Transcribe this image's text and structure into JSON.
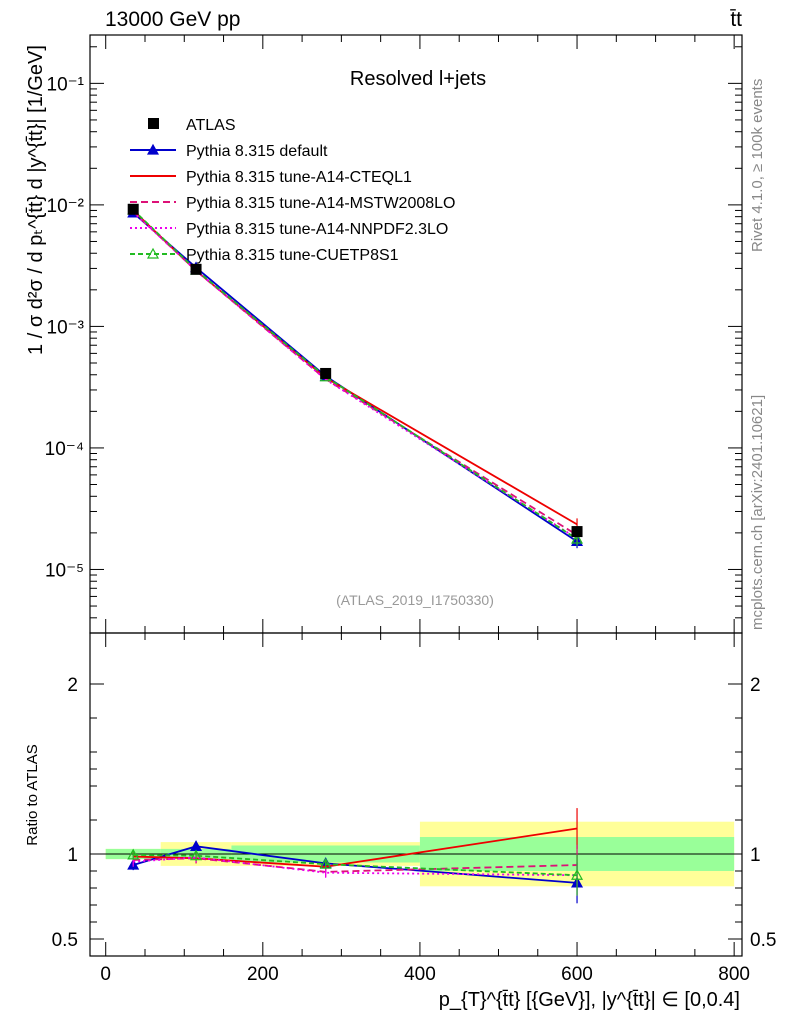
{
  "header": {
    "left": "13000 GeV pp",
    "right": "t̄t"
  },
  "side_labels": {
    "rivet": "Rivet 4.1.0, ≥ 100k events",
    "mcplots": "mcplots.cern.ch [arXiv:2401.10621]"
  },
  "chart_data": {
    "type": "line",
    "title": "Resolved l+jets",
    "analysis": "(ATLAS_2019_I1750330)",
    "ylabel": "1 / σ d²σ / d pₜ^{t̄t} d |y^{t̄t}| [1/GeV]",
    "xlabel": "p_{T}^{t̄t} [{GeV}], |y^{t̄t}| ∈ [0,0.4]",
    "ratio_ylabel": "Ratio to ATLAS",
    "xlim": [
      -20,
      810
    ],
    "ylim": [
      3e-06,
      0.25
    ],
    "ratio_ylim": [
      0.4,
      2.3
    ],
    "yscale": "log",
    "x_ticks": [
      0,
      200,
      400,
      600,
      800
    ],
    "x_tick_labels": [
      "0",
      "200",
      "400",
      "600",
      "800"
    ],
    "y_tick_labels": [
      "10⁻¹",
      "10⁻²",
      "10⁻³",
      "10⁻⁴",
      "10⁻⁵"
    ],
    "y_tick_values": [
      0.1,
      0.01,
      0.001,
      0.0001,
      1e-05
    ],
    "ratio_ticks": [
      0.5,
      1,
      2
    ],
    "ratio_tick_labels": [
      "0.5",
      "1",
      "2"
    ],
    "bins": [
      [
        0,
        70
      ],
      [
        70,
        160
      ],
      [
        160,
        400
      ],
      [
        400,
        800
      ]
    ],
    "x": [
      35,
      115,
      280,
      600
    ],
    "data": {
      "name": "ATLAS",
      "values": [
        0.0092,
        0.00295,
        0.00041,
        2.05e-05
      ],
      "band_inner": [
        0.03,
        0.03,
        0.05,
        0.1
      ],
      "band_outer": [
        0.03,
        0.07,
        0.07,
        0.19
      ]
    },
    "series": [
      {
        "name": "Pythia 8.315 default",
        "color": "#0000cc",
        "style": "solid",
        "marker": "triangle-filled",
        "values": [
          0.0086,
          0.00305,
          0.00039,
          1.7e-05
        ],
        "ratio": [
          0.935,
          1.045,
          0.945,
          0.83
        ]
      },
      {
        "name": "Pythia 8.315 tune-A14-CTEQL1",
        "color": "#ee0000",
        "style": "solid",
        "marker": "none",
        "values": [
          0.009,
          0.00287,
          0.000378,
          2.35e-05
        ],
        "ratio": [
          0.985,
          0.975,
          0.925,
          1.15
        ]
      },
      {
        "name": "Pythia 8.315 tune-A14-MSTW2008LO",
        "color": "#dd1177",
        "style": "dashed",
        "marker": "none",
        "values": [
          0.0088,
          0.00287,
          0.000368,
          1.92e-05
        ],
        "ratio": [
          0.965,
          0.975,
          0.895,
          0.935
        ]
      },
      {
        "name": "Pythia 8.315 tune-A14-NNPDF2.3LO",
        "color": "#ee00ee",
        "style": "dotted",
        "marker": "none",
        "values": [
          0.0087,
          0.00289,
          0.000366,
          1.8e-05
        ],
        "ratio": [
          0.955,
          0.98,
          0.89,
          0.875
        ]
      },
      {
        "name": "Pythia 8.315 tune-CUETP8S1",
        "color": "#22bb22",
        "style": "dashed-fine",
        "marker": "triangle-open",
        "values": [
          0.0091,
          0.00291,
          0.000385,
          1.78e-05
        ],
        "ratio": [
          0.995,
          0.99,
          0.94,
          0.875
        ]
      }
    ]
  }
}
